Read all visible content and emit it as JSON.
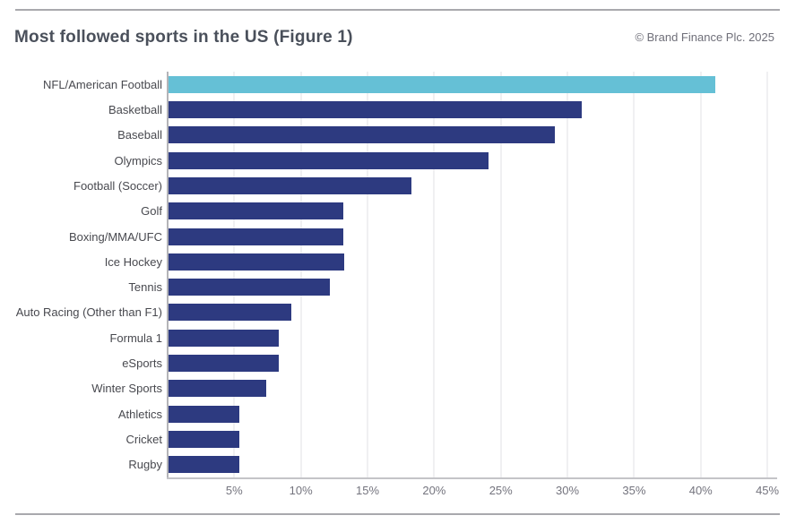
{
  "header": {
    "title": "Most followed sports in the US (Figure 1)",
    "copyright": "© Brand Finance Plc. 2025"
  },
  "chart_data": {
    "type": "bar",
    "orientation": "horizontal",
    "title": "Most followed sports in the US (Figure 1)",
    "categories": [
      "NFL/American Football",
      "Basketball",
      "Baseball",
      "Olympics",
      "Football (Soccer)",
      "Golf",
      "Boxing/MMA/UFC",
      "Ice Hockey",
      "Tennis",
      "Auto Racing (Other than F1)",
      "Formula 1",
      "eSports",
      "Winter Sports",
      "Athletics",
      "Cricket",
      "Rugby"
    ],
    "values": [
      41,
      31,
      29,
      24,
      18.2,
      13.1,
      13.1,
      13.2,
      12.1,
      9.2,
      8.3,
      8.3,
      7.3,
      5.3,
      5.3,
      5.3
    ],
    "value_unit": "%",
    "xlim": [
      0,
      45.6
    ],
    "x_ticks": [
      "5%",
      "10%",
      "15%",
      "20%",
      "25%",
      "30%",
      "35%",
      "40%",
      "45%"
    ],
    "x_tick_values": [
      5,
      10,
      15,
      20,
      25,
      30,
      35,
      40,
      45
    ],
    "grid": "vertical-gridlines",
    "legend": "none",
    "highlight_index": 0,
    "colors": {
      "bar": "#2d3a80",
      "highlight_bar": "#65c0d6"
    }
  }
}
